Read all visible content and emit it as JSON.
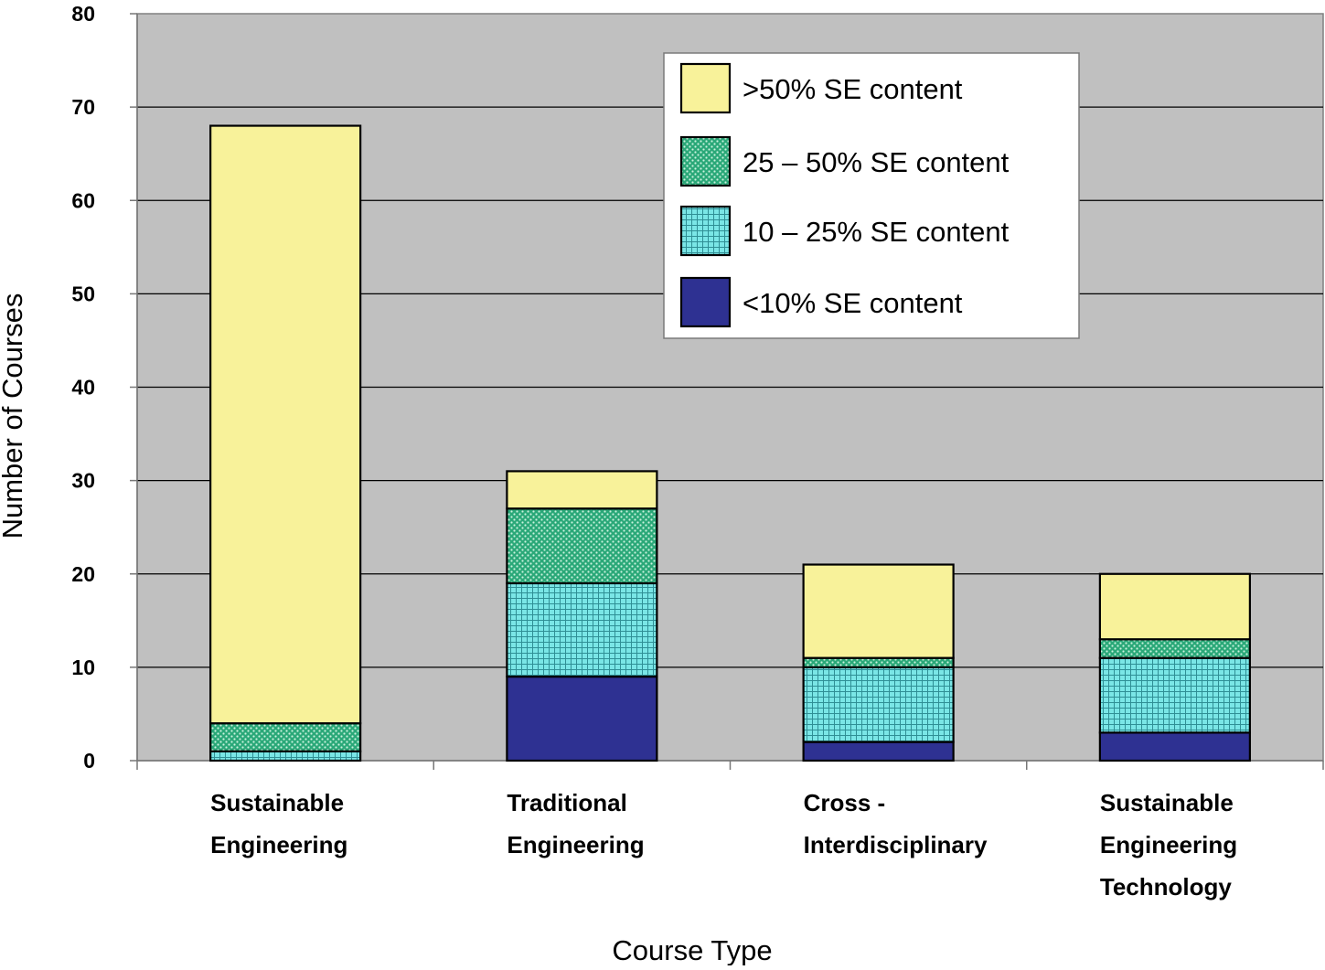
{
  "chart_data": {
    "type": "bar",
    "stacked": true,
    "xlabel": "Course Type",
    "ylabel": "Number of Courses",
    "ylim": [
      0,
      80
    ],
    "yticks": [
      0,
      10,
      20,
      30,
      40,
      50,
      60,
      70,
      80
    ],
    "grid": "horizontal",
    "legend_position": "top-right",
    "categories": [
      [
        "Sustainable",
        "Engineering"
      ],
      [
        "Traditional",
        "Engineering"
      ],
      [
        "Cross -",
        "Interdisciplinary"
      ],
      [
        "Sustainable",
        "Engineering",
        "Technology"
      ]
    ],
    "series": [
      {
        "name": "<10% SE content",
        "values": [
          0,
          9,
          2,
          3
        ],
        "color": "#2e3192",
        "pattern": "solid"
      },
      {
        "name": "10 – 25% SE content",
        "values": [
          1,
          10,
          8,
          8
        ],
        "color": "#66e0e0",
        "pattern": "grid"
      },
      {
        "name": "25 – 50% SE content",
        "values": [
          3,
          8,
          1,
          2
        ],
        "color": "#1a9e6a",
        "pattern": "dots"
      },
      {
        "name": ">50% SE content",
        "values": [
          64,
          4,
          10,
          7
        ],
        "color": "#f8f29a",
        "pattern": "solid"
      }
    ],
    "legend_order": [
      3,
      2,
      1,
      0
    ],
    "plot_background": "#c0c0c0"
  }
}
